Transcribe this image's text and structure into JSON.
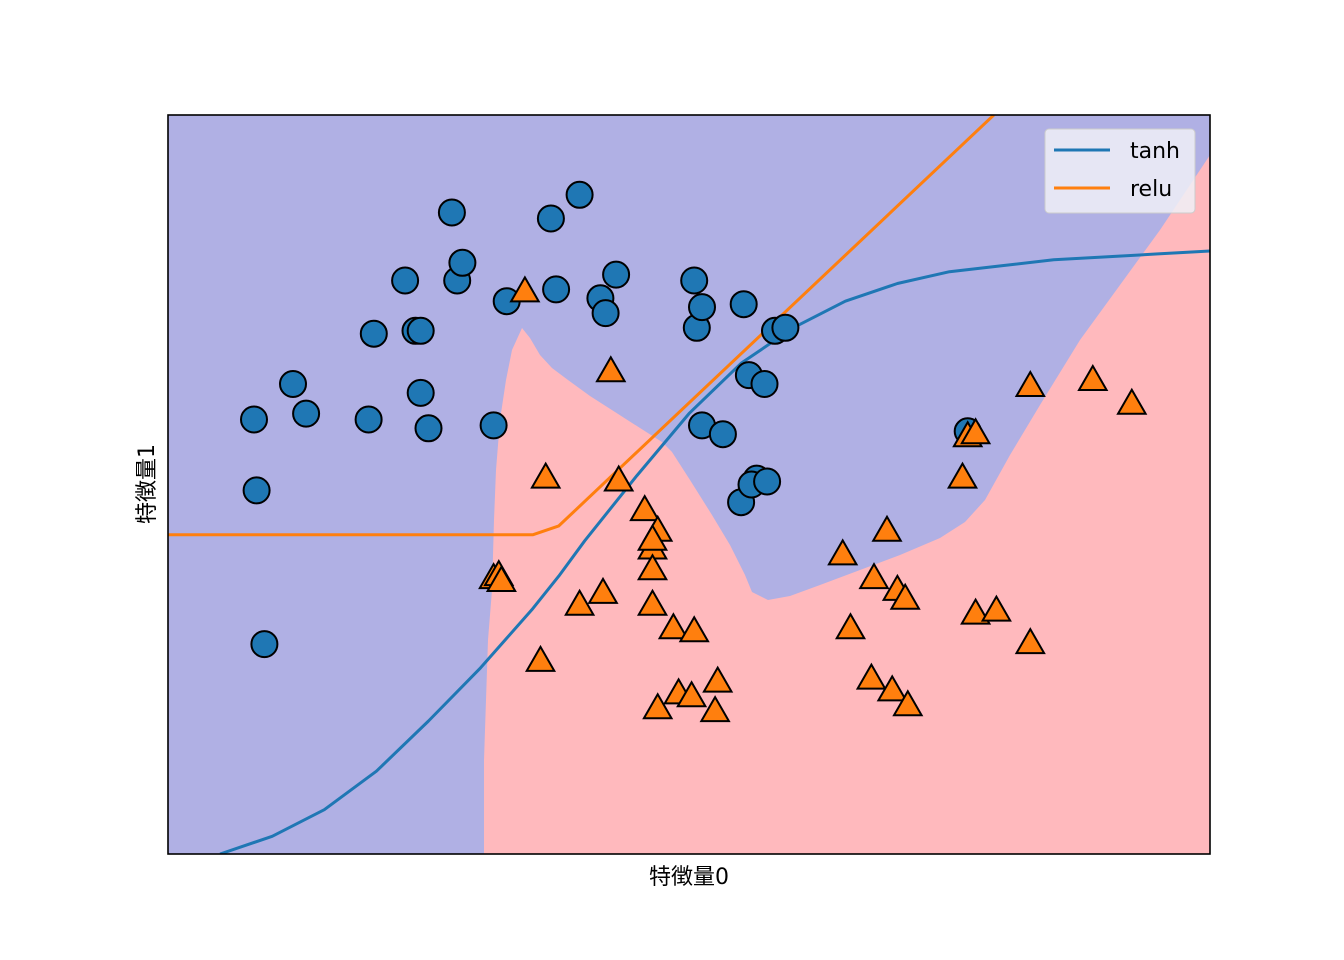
{
  "chart_data": {
    "type": "scatter",
    "title": "",
    "xlabel": "特徴量0",
    "ylabel": "特徴量1",
    "xlim": [
      -1.5,
      2.5
    ],
    "ylim": [
      -1.0,
      1.5
    ],
    "grid": false,
    "ticks_visible": false,
    "legend": {
      "placement": "top-right",
      "entries": [
        "tanh",
        "relu"
      ]
    },
    "colors": {
      "class0_region": "#b0b0e4",
      "class1_region": "#ffb9bd",
      "class0_marker": "#1f77b4",
      "class1_marker": "#ff7f0e",
      "tanh_line": "#1f77b4",
      "relu_line": "#ff7f0e"
    },
    "series": [
      {
        "name": "",
        "marker": "circle",
        "points": [
          [
            -1.17,
            0.47
          ],
          [
            -1.16,
            0.23
          ],
          [
            -1.13,
            -0.29
          ],
          [
            -1.02,
            0.59
          ],
          [
            -0.97,
            0.49
          ],
          [
            -0.73,
            0.47
          ],
          [
            -0.71,
            0.76
          ],
          [
            -0.59,
            0.94
          ],
          [
            -0.55,
            0.77
          ],
          [
            -0.53,
            0.77
          ],
          [
            -0.53,
            0.56
          ],
          [
            -0.5,
            0.44
          ],
          [
            -0.41,
            1.17
          ],
          [
            -0.39,
            0.94
          ],
          [
            -0.37,
            1.0
          ],
          [
            -0.25,
            0.45
          ],
          [
            -0.2,
            0.87
          ],
          [
            -0.03,
            1.15
          ],
          [
            -0.01,
            0.91
          ],
          [
            0.08,
            1.23
          ],
          [
            0.16,
            0.88
          ],
          [
            0.18,
            0.83
          ],
          [
            0.22,
            0.96
          ],
          [
            0.52,
            0.94
          ],
          [
            0.53,
            0.78
          ],
          [
            0.55,
            0.85
          ],
          [
            0.55,
            0.45
          ],
          [
            0.63,
            0.42
          ],
          [
            0.71,
            0.86
          ],
          [
            0.73,
            0.62
          ],
          [
            0.76,
            0.27
          ],
          [
            0.7,
            0.19
          ],
          [
            0.74,
            0.25
          ],
          [
            0.79,
            0.59
          ],
          [
            0.8,
            0.26
          ],
          [
            0.83,
            0.77
          ],
          [
            0.87,
            0.78
          ],
          [
            1.57,
            0.43
          ]
        ]
      },
      {
        "name": "",
        "marker": "triangle",
        "points": [
          [
            -0.13,
            0.9
          ],
          [
            -0.05,
            0.27
          ],
          [
            0.2,
            0.63
          ],
          [
            0.23,
            0.26
          ],
          [
            0.33,
            0.16
          ],
          [
            0.38,
            0.09
          ],
          [
            0.36,
            0.03
          ],
          [
            0.36,
            0.06
          ],
          [
            0.36,
            -0.04
          ],
          [
            -0.25,
            -0.07
          ],
          [
            -0.23,
            -0.06
          ],
          [
            -0.22,
            -0.08
          ],
          [
            0.17,
            -0.12
          ],
          [
            0.08,
            -0.16
          ],
          [
            0.36,
            -0.16
          ],
          [
            0.44,
            -0.24
          ],
          [
            0.52,
            -0.25
          ],
          [
            -0.07,
            -0.35
          ],
          [
            0.38,
            -0.51
          ],
          [
            0.46,
            -0.46
          ],
          [
            0.51,
            -0.47
          ],
          [
            0.61,
            -0.42
          ],
          [
            0.6,
            -0.52
          ],
          [
            1.09,
            0.01
          ],
          [
            1.21,
            -0.07
          ],
          [
            1.26,
            0.09
          ],
          [
            1.3,
            -0.11
          ],
          [
            1.33,
            -0.14
          ],
          [
            1.12,
            -0.24
          ],
          [
            1.2,
            -0.41
          ],
          [
            1.28,
            -0.45
          ],
          [
            1.34,
            -0.5
          ],
          [
            1.57,
            0.41
          ],
          [
            1.55,
            0.27
          ],
          [
            1.6,
            0.42
          ],
          [
            1.6,
            -0.19
          ],
          [
            1.68,
            -0.18
          ],
          [
            1.81,
            -0.29
          ],
          [
            1.81,
            0.58
          ],
          [
            2.05,
            0.6
          ],
          [
            2.2,
            0.52
          ]
        ]
      },
      {
        "name": "tanh",
        "type": "line",
        "x": [
          -1.3,
          -1.1,
          -0.9,
          -0.7,
          -0.5,
          -0.3,
          -0.1,
          0.0,
          0.1,
          0.3,
          0.5,
          0.7,
          0.9,
          1.1,
          1.3,
          1.5,
          1.7,
          1.9,
          2.1,
          2.3,
          2.5
        ],
        "y": [
          -1.0,
          -0.94,
          -0.85,
          -0.72,
          -0.55,
          -0.37,
          -0.17,
          -0.06,
          0.06,
          0.28,
          0.49,
          0.66,
          0.78,
          0.87,
          0.93,
          0.97,
          0.99,
          1.01,
          1.02,
          1.03,
          1.04
        ]
      },
      {
        "name": "relu",
        "type": "line",
        "x": [
          -1.5,
          -0.1,
          0.0,
          1.67
        ],
        "y": [
          0.08,
          0.08,
          0.11,
          1.5
        ]
      }
    ]
  }
}
